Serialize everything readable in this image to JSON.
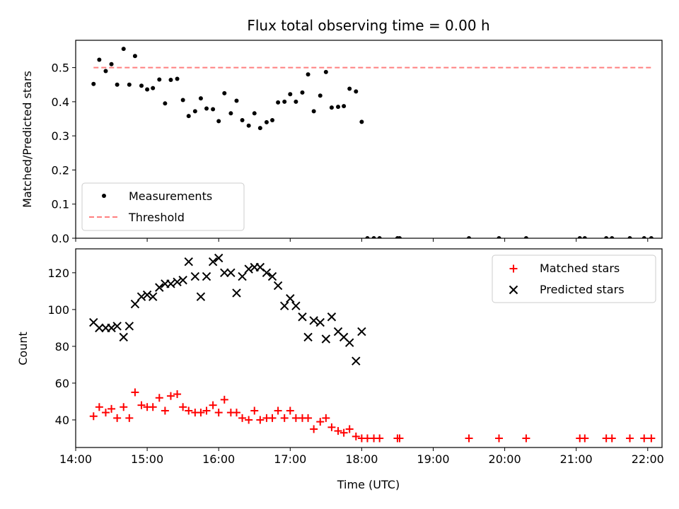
{
  "title": "Flux total observing time = 0.00 h",
  "xlabel": "Time (UTC)",
  "colors": {
    "measurement": "#000000",
    "threshold": "#ff7f7f",
    "matched": "#ff0000",
    "predicted": "#000000"
  },
  "chart_data": [
    {
      "type": "scatter",
      "ylabel": "Matched/Predicted stars",
      "xlim": [
        14.0,
        22.2
      ],
      "ylim": [
        0.0,
        0.58
      ],
      "yticks": [
        0.0,
        0.1,
        0.2,
        0.3,
        0.4,
        0.5
      ],
      "ytick_labels": [
        "0.0",
        "0.1",
        "0.2",
        "0.3",
        "0.4",
        "0.5"
      ],
      "grid": false,
      "legend_position": "lower-left",
      "series": [
        {
          "name": "Measurements",
          "kind": "points",
          "x": [
            14.25,
            14.33,
            14.42,
            14.5,
            14.58,
            14.67,
            14.75,
            14.83,
            14.92,
            15.0,
            15.08,
            15.17,
            15.25,
            15.33,
            15.42,
            15.5,
            15.58,
            15.67,
            15.75,
            15.83,
            15.92,
            16.0,
            16.08,
            16.17,
            16.25,
            16.33,
            16.42,
            16.5,
            16.58,
            16.67,
            16.75,
            16.83,
            16.92,
            17.0,
            17.08,
            17.17,
            17.25,
            17.33,
            17.42,
            17.5,
            17.58,
            17.67,
            17.75,
            17.83,
            17.92,
            18.0,
            18.08,
            18.17,
            18.25,
            18.5,
            18.53,
            19.5,
            19.92,
            20.3,
            21.05,
            21.12,
            21.42,
            21.5,
            21.75,
            21.95,
            22.05
          ],
          "y": [
            0.452,
            0.523,
            0.49,
            0.51,
            0.45,
            0.555,
            0.45,
            0.534,
            0.447,
            0.436,
            0.44,
            0.465,
            0.395,
            0.464,
            0.467,
            0.405,
            0.358,
            0.372,
            0.41,
            0.38,
            0.378,
            0.343,
            0.425,
            0.366,
            0.403,
            0.346,
            0.33,
            0.366,
            0.323,
            0.34,
            0.346,
            0.398,
            0.4,
            0.422,
            0.4,
            0.427,
            0.48,
            0.372,
            0.418,
            0.487,
            0.383,
            0.385,
            0.387,
            0.438,
            0.43,
            0.341,
            0.0,
            0.0,
            0.0,
            0.0,
            0.0,
            0.0,
            0.0,
            0.0,
            0.0,
            0.0,
            0.0,
            0.0,
            0.0,
            0.0,
            0.0
          ]
        },
        {
          "name": "Threshold",
          "kind": "dashed-line",
          "x": [
            14.25,
            22.05
          ],
          "y": [
            0.5,
            0.5
          ]
        }
      ]
    },
    {
      "type": "scatter",
      "ylabel": "Count",
      "xlim": [
        14.0,
        22.2
      ],
      "ylim": [
        25,
        133
      ],
      "yticks": [
        40,
        60,
        80,
        100,
        120
      ],
      "ytick_labels": [
        "40",
        "60",
        "80",
        "100",
        "120"
      ],
      "xticks": [
        14,
        15,
        16,
        17,
        18,
        19,
        20,
        21,
        22
      ],
      "xtick_labels": [
        "14:00",
        "15:00",
        "16:00",
        "17:00",
        "18:00",
        "19:00",
        "20:00",
        "21:00",
        "22:00"
      ],
      "grid": false,
      "legend_position": "top-right",
      "series": [
        {
          "name": "Matched stars",
          "kind": "plus",
          "x": [
            14.25,
            14.33,
            14.42,
            14.5,
            14.58,
            14.67,
            14.75,
            14.83,
            14.92,
            15.0,
            15.08,
            15.17,
            15.25,
            15.33,
            15.42,
            15.5,
            15.58,
            15.67,
            15.75,
            15.83,
            15.92,
            16.0,
            16.08,
            16.17,
            16.25,
            16.33,
            16.42,
            16.5,
            16.58,
            16.67,
            16.75,
            16.83,
            16.92,
            17.0,
            17.08,
            17.17,
            17.25,
            17.33,
            17.42,
            17.5,
            17.58,
            17.67,
            17.75,
            17.83,
            17.92,
            18.0,
            18.08,
            18.17,
            18.25,
            18.5,
            18.53,
            19.5,
            19.92,
            20.3,
            21.05,
            21.12,
            21.42,
            21.5,
            21.75,
            21.95,
            22.05
          ],
          "y": [
            42,
            47,
            44,
            46,
            41,
            47,
            41,
            55,
            48,
            47,
            47,
            52,
            45,
            53,
            54,
            47,
            45,
            44,
            44,
            45,
            48,
            44,
            51,
            44,
            44,
            41,
            40,
            45,
            40,
            41,
            41,
            45,
            41,
            45,
            41,
            41,
            41,
            35,
            39,
            41,
            36,
            34,
            33,
            35,
            31,
            30,
            30,
            30,
            30,
            30,
            30,
            30,
            30,
            30,
            30,
            30,
            30,
            30,
            30,
            30,
            30
          ]
        },
        {
          "name": "Predicted stars",
          "kind": "x",
          "x": [
            14.25,
            14.33,
            14.42,
            14.5,
            14.58,
            14.67,
            14.75,
            14.83,
            14.92,
            15.0,
            15.08,
            15.17,
            15.25,
            15.33,
            15.42,
            15.5,
            15.58,
            15.67,
            15.75,
            15.83,
            15.92,
            16.0,
            16.08,
            16.17,
            16.25,
            16.33,
            16.42,
            16.5,
            16.58,
            16.67,
            16.75,
            16.83,
            16.92,
            17.0,
            17.08,
            17.17,
            17.25,
            17.33,
            17.42,
            17.5,
            17.58,
            17.67,
            17.75,
            17.83,
            17.92,
            18.0
          ],
          "y": [
            93,
            90,
            90,
            90,
            91,
            85,
            91,
            103,
            107,
            108,
            107,
            112,
            114,
            114,
            115,
            116,
            126,
            118,
            107,
            118,
            126,
            128,
            120,
            120,
            109,
            118,
            122,
            123,
            123,
            120,
            118,
            113,
            102,
            106,
            102,
            96,
            85,
            94,
            93,
            84,
            96,
            88,
            85,
            82,
            72,
            88
          ]
        }
      ]
    }
  ]
}
